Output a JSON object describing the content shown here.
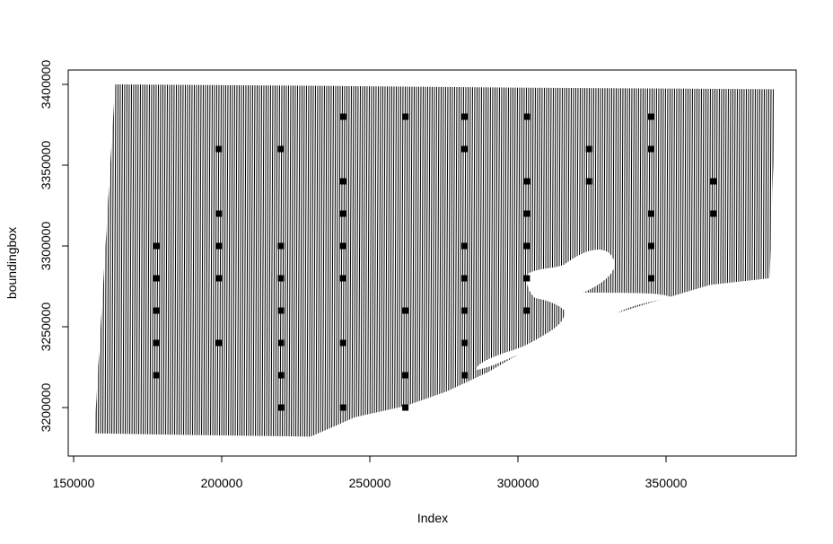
{
  "chart_data": {
    "type": "scatter",
    "title": "",
    "xlabel": "Index",
    "ylabel": "boundingbox",
    "xlim": [
      150000,
      390000
    ],
    "ylim": [
      3185000,
      3405000
    ],
    "x_ticks": [
      150000,
      200000,
      250000,
      300000,
      350000
    ],
    "x_tick_labels": [
      "150000",
      "200000",
      "250000",
      "300000",
      "350000"
    ],
    "y_ticks": [
      3200000,
      3250000,
      3300000,
      3350000,
      3400000
    ],
    "y_tick_labels": [
      "3200000",
      "3250000",
      "3300000",
      "3350000",
      "3400000"
    ],
    "grid": false,
    "legend": "none",
    "hatched_region": {
      "boundary": [
        [
          164000,
          3400000
        ],
        [
          240000,
          3399000
        ],
        [
          300000,
          3398000
        ],
        [
          387000,
          3397000
        ],
        [
          385000,
          3280000
        ],
        [
          365000,
          3276000
        ],
        [
          345000,
          3265000
        ],
        [
          322000,
          3252000
        ],
        [
          305000,
          3238000
        ],
        [
          290000,
          3222000
        ],
        [
          276000,
          3210000
        ],
        [
          262000,
          3201000
        ],
        [
          245000,
          3194000
        ],
        [
          230000,
          3182000
        ],
        [
          190000,
          3183000
        ],
        [
          157000,
          3184000
        ]
      ],
      "line_color": "#000000"
    },
    "points": [
      [
        178000,
        3300000
      ],
      [
        178000,
        3280000
      ],
      [
        178000,
        3260000
      ],
      [
        178000,
        3240000
      ],
      [
        178000,
        3220000
      ],
      [
        199000,
        3360000
      ],
      [
        199000,
        3320000
      ],
      [
        199000,
        3300000
      ],
      [
        199000,
        3280000
      ],
      [
        199000,
        3240000
      ],
      [
        220000,
        3360000
      ],
      [
        220000,
        3300000
      ],
      [
        220000,
        3280000
      ],
      [
        220000,
        3260000
      ],
      [
        220000,
        3240000
      ],
      [
        220000,
        3220000
      ],
      [
        220000,
        3200000
      ],
      [
        241000,
        3380000
      ],
      [
        241000,
        3340000
      ],
      [
        241000,
        3320000
      ],
      [
        241000,
        3300000
      ],
      [
        241000,
        3280000
      ],
      [
        241000,
        3240000
      ],
      [
        241000,
        3200000
      ],
      [
        262000,
        3380000
      ],
      [
        262000,
        3260000
      ],
      [
        262000,
        3220000
      ],
      [
        262000,
        3200000
      ],
      [
        282000,
        3380000
      ],
      [
        282000,
        3360000
      ],
      [
        282000,
        3300000
      ],
      [
        282000,
        3280000
      ],
      [
        282000,
        3260000
      ],
      [
        282000,
        3240000
      ],
      [
        282000,
        3220000
      ],
      [
        303000,
        3380000
      ],
      [
        303000,
        3340000
      ],
      [
        303000,
        3320000
      ],
      [
        303000,
        3300000
      ],
      [
        303000,
        3280000
      ],
      [
        303000,
        3260000
      ],
      [
        324000,
        3360000
      ],
      [
        324000,
        3340000
      ],
      [
        345000,
        3380000
      ],
      [
        345000,
        3360000
      ],
      [
        345000,
        3320000
      ],
      [
        345000,
        3300000
      ],
      [
        345000,
        3280000
      ],
      [
        366000,
        3340000
      ],
      [
        366000,
        3320000
      ]
    ],
    "point_color": "#000000"
  }
}
